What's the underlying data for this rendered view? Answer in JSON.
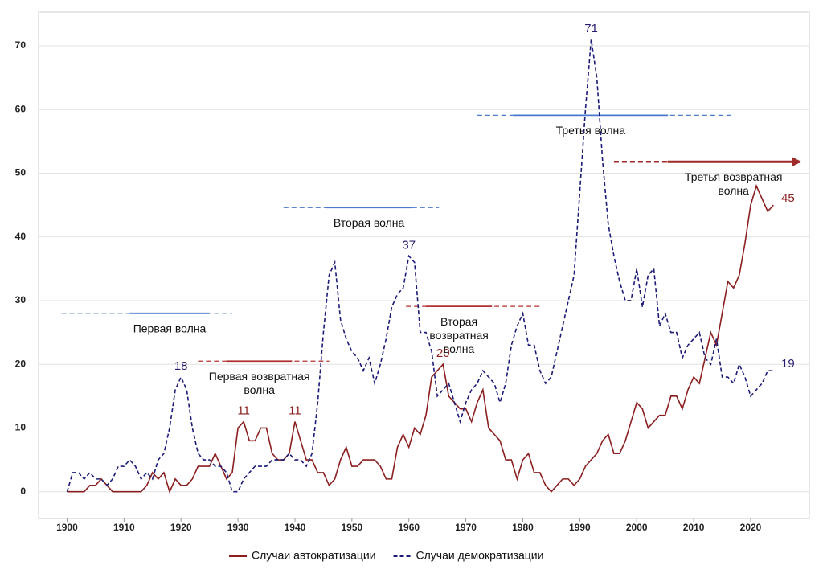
{
  "chart_data": {
    "type": "line",
    "x": [
      1900,
      1901,
      1902,
      1903,
      1904,
      1905,
      1906,
      1907,
      1908,
      1909,
      1910,
      1911,
      1912,
      1913,
      1914,
      1915,
      1916,
      1917,
      1918,
      1919,
      1920,
      1921,
      1922,
      1923,
      1924,
      1925,
      1926,
      1927,
      1928,
      1929,
      1930,
      1931,
      1932,
      1933,
      1934,
      1935,
      1936,
      1937,
      1938,
      1939,
      1940,
      1941,
      1942,
      1943,
      1944,
      1945,
      1946,
      1947,
      1948,
      1949,
      1950,
      1951,
      1952,
      1953,
      1954,
      1955,
      1956,
      1957,
      1958,
      1959,
      1960,
      1961,
      1962,
      1963,
      1964,
      1965,
      1966,
      1967,
      1968,
      1969,
      1970,
      1971,
      1972,
      1973,
      1974,
      1975,
      1976,
      1977,
      1978,
      1979,
      1980,
      1981,
      1982,
      1983,
      1984,
      1985,
      1986,
      1987,
      1988,
      1989,
      1990,
      1991,
      1992,
      1993,
      1994,
      1995,
      1996,
      1997,
      1998,
      1999,
      2000,
      2001,
      2002,
      2003,
      2004,
      2005,
      2006,
      2007,
      2008,
      2009,
      2010,
      2011,
      2012,
      2013,
      2014,
      2015,
      2016,
      2017,
      2018,
      2019,
      2020,
      2021,
      2022,
      2023,
      2024
    ],
    "series": [
      {
        "name": "Случаи автократизации",
        "color": "#8b1e1e",
        "dash": false,
        "values": [
          0,
          0,
          0,
          0,
          1,
          1,
          2,
          1,
          0,
          0,
          0,
          0,
          0,
          0,
          1,
          3,
          2,
          3,
          0,
          2,
          1,
          1,
          2,
          4,
          4,
          4,
          6,
          4,
          2,
          3,
          10,
          11,
          8,
          8,
          10,
          10,
          6,
          5,
          5,
          6,
          11,
          8,
          5,
          5,
          3,
          3,
          1,
          2,
          5,
          7,
          4,
          4,
          5,
          5,
          5,
          4,
          2,
          2,
          7,
          9,
          7,
          10,
          9,
          12,
          18,
          19,
          20,
          15,
          14,
          13,
          13,
          11,
          14,
          16,
          10,
          9,
          8,
          5,
          5,
          2,
          5,
          6,
          3,
          3,
          1,
          0,
          1,
          2,
          2,
          1,
          2,
          4,
          5,
          6,
          8,
          9,
          6,
          6,
          8,
          11,
          14,
          13,
          10,
          11,
          12,
          12,
          15,
          15,
          13,
          16,
          18,
          17,
          21,
          25,
          23,
          28,
          33,
          32,
          34,
          39,
          45,
          48,
          46,
          44,
          45
        ]
      },
      {
        "name": "Случаи демократизации",
        "color": "#1c1c78",
        "dash": true,
        "values": [
          0,
          3,
          3,
          2,
          3,
          2,
          2,
          1,
          2,
          4,
          4,
          5,
          4,
          2,
          3,
          2,
          5,
          6,
          10,
          16,
          18,
          16,
          10,
          6,
          5,
          5,
          4,
          4,
          3,
          0,
          0,
          2,
          3,
          4,
          4,
          4,
          5,
          5,
          5,
          6,
          5,
          5,
          4,
          6,
          14,
          25,
          34,
          36,
          27,
          24,
          22,
          21,
          19,
          21,
          17,
          20,
          24,
          29,
          31,
          32,
          37,
          36,
          25,
          25,
          22,
          15,
          16,
          17,
          14,
          11,
          14,
          16,
          17,
          19,
          18,
          17,
          14,
          17,
          23,
          26,
          28,
          23,
          23,
          19,
          17,
          18,
          22,
          26,
          30,
          34,
          47,
          60,
          71,
          65,
          52,
          42,
          37,
          33,
          30,
          30,
          35,
          29,
          34,
          35,
          26,
          28,
          25,
          25,
          21,
          23,
          24,
          25,
          21,
          20,
          24,
          18,
          18,
          17,
          20,
          18,
          15,
          16,
          17,
          19,
          19
        ]
      }
    ],
    "data_labels": [
      {
        "x": 1920,
        "value": 18,
        "color": "#2a1c6e"
      },
      {
        "x": 1931,
        "value": 11,
        "color": "#8b1e1e"
      },
      {
        "x": 1940,
        "value": 11,
        "color": "#8b1e1e"
      },
      {
        "x": 1960,
        "value": 37,
        "color": "#2a1c6e"
      },
      {
        "x": 1966,
        "value": 20,
        "color": "#8b1e1e"
      },
      {
        "x": 1992,
        "value": 71,
        "color": "#2a1c6e"
      },
      {
        "x": 2024,
        "value": 45,
        "color": "#8b1e1e"
      },
      {
        "x": 2024,
        "value": 19,
        "color": "#2a1c6e"
      }
    ],
    "waves": [
      {
        "label": [
          "Первая волна"
        ],
        "start": 1899,
        "end": 1929,
        "core": [
          1911,
          1925
        ],
        "y": 28,
        "color": "#4a78cc"
      },
      {
        "label": [
          "Первая возвратная",
          "волна"
        ],
        "start": 1923,
        "end": 1946,
        "core": [
          1928,
          1939.5
        ],
        "y": 20.5,
        "color": "#b03030"
      },
      {
        "label": [
          "Вторая волна"
        ],
        "start": 1938,
        "end": 1965.3,
        "core": [
          1945.4,
          1960.6
        ],
        "y": 44.6,
        "color": "#4a78cc"
      },
      {
        "label": [
          "Вторая",
          "возвратная",
          "волна"
        ],
        "start": 1959.5,
        "end": 1983.5,
        "core": [
          1963,
          1974.6
        ],
        "y": 29.1,
        "color": "#b03030"
      },
      {
        "label": [
          "Третья волна"
        ],
        "start": 1972,
        "end": 2017,
        "core": [
          1978.3,
          2005.5
        ],
        "y": 59.1,
        "color": "#4a78cc"
      },
      {
        "label": [
          "Третья возвратная",
          "волна"
        ],
        "start": 1996,
        "end": 2028.6,
        "core": [
          2005.4,
          2028.6
        ],
        "y": 51.8,
        "color": "#a02a2a",
        "arrow": true
      }
    ],
    "xlim": [
      1895,
      2030.3
    ],
    "ylim": [
      -4.2,
      75.3
    ],
    "xticks": [
      1900,
      1910,
      1920,
      1930,
      1940,
      1950,
      1960,
      1970,
      1980,
      1990,
      2000,
      2010,
      2020
    ],
    "yticks": [
      0,
      10,
      20,
      30,
      40,
      50,
      60,
      70
    ],
    "grid": true
  }
}
